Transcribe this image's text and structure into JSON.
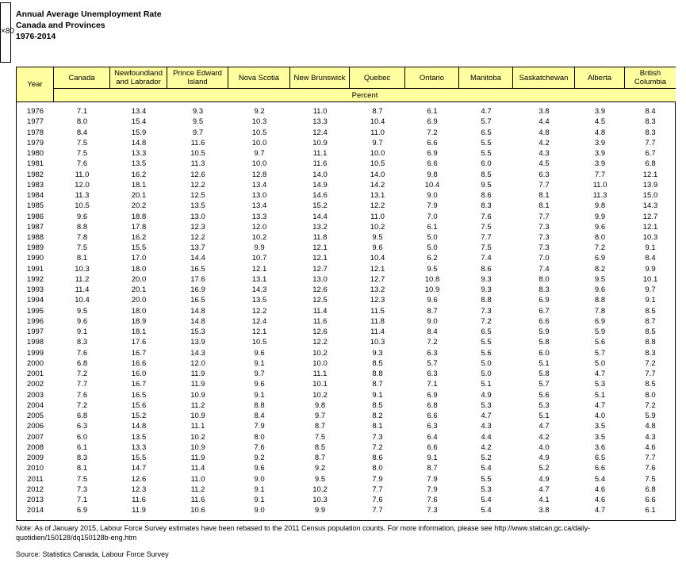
{
  "header": {
    "image_alt": "×80",
    "title": "Annual Average Unemployment Rate",
    "subtitle": "Canada and Provinces",
    "period": "1976-2014"
  },
  "table": {
    "columns": [
      "Year",
      "Canada",
      "Newfoundland and Labrador",
      "Prince Edward Island",
      "Nova Scotia",
      "New Brunswick",
      "Quebec",
      "Ontario",
      "Manitoba",
      "Saskatchewan",
      "Alberta",
      "British Columbia"
    ],
    "unit": "Percent",
    "rows": [
      [
        "1976",
        "7.1",
        "13.4",
        "9.3",
        "9.2",
        "11.0",
        "8.7",
        "6.1",
        "4.7",
        "3.8",
        "3.9",
        "8.4"
      ],
      [
        "1977",
        "8.0",
        "15.4",
        "9.5",
        "10.3",
        "13.3",
        "10.4",
        "6.9",
        "5.7",
        "4.4",
        "4.5",
        "8.3"
      ],
      [
        "1978",
        "8.4",
        "15.9",
        "9.7",
        "10.5",
        "12.4",
        "11.0",
        "7.2",
        "6.5",
        "4.8",
        "4.8",
        "8.3"
      ],
      [
        "1979",
        "7.5",
        "14.8",
        "11.6",
        "10.0",
        "10.9",
        "9.7",
        "6.6",
        "5.5",
        "4.2",
        "3.9",
        "7.7"
      ],
      [
        "1980",
        "7.5",
        "13.3",
        "10.5",
        "9.7",
        "11.1",
        "10.0",
        "6.9",
        "5.5",
        "4.3",
        "3.9",
        "6.7"
      ],
      [
        "1981",
        "7.6",
        "13.5",
        "11.3",
        "10.0",
        "11.6",
        "10.5",
        "6.6",
        "6.0",
        "4.5",
        "3.9",
        "6.8"
      ],
      [
        "1982",
        "11.0",
        "16.2",
        "12.6",
        "12.8",
        "14.0",
        "14.0",
        "9.8",
        "8.5",
        "6.3",
        "7.7",
        "12.1"
      ],
      [
        "1983",
        "12.0",
        "18.1",
        "12.2",
        "13.4",
        "14.9",
        "14.2",
        "10.4",
        "9.5",
        "7.7",
        "11.0",
        "13.9"
      ],
      [
        "1984",
        "11.3",
        "20.1",
        "12.5",
        "13.0",
        "14.6",
        "13.1",
        "9.0",
        "8.6",
        "8.1",
        "11.3",
        "15.0"
      ],
      [
        "1985",
        "10.5",
        "20.2",
        "13.5",
        "13.4",
        "15.2",
        "12.2",
        "7.9",
        "8.3",
        "8.1",
        "9.8",
        "14.3"
      ],
      [
        "1986",
        "9.6",
        "18.8",
        "13.0",
        "13.3",
        "14.4",
        "11.0",
        "7.0",
        "7.6",
        "7.7",
        "9.9",
        "12.7"
      ],
      [
        "1987",
        "8.8",
        "17.8",
        "12.3",
        "12.0",
        "13.2",
        "10.2",
        "6.1",
        "7.5",
        "7.3",
        "9.6",
        "12.1"
      ],
      [
        "1988",
        "7.8",
        "16.2",
        "12.2",
        "10.2",
        "11.8",
        "9.5",
        "5.0",
        "7.7",
        "7.3",
        "8.0",
        "10.3"
      ],
      [
        "1989",
        "7.5",
        "15.5",
        "13.7",
        "9.9",
        "12.1",
        "9.6",
        "5.0",
        "7.5",
        "7.3",
        "7.2",
        "9.1"
      ],
      [
        "1990",
        "8.1",
        "17.0",
        "14.4",
        "10.7",
        "12.1",
        "10.4",
        "6.2",
        "7.4",
        "7.0",
        "6.9",
        "8.4"
      ],
      [
        "1991",
        "10.3",
        "18.0",
        "16.5",
        "12.1",
        "12.7",
        "12.1",
        "9.5",
        "8.6",
        "7.4",
        "8.2",
        "9.9"
      ],
      [
        "1992",
        "11.2",
        "20.0",
        "17.6",
        "13.1",
        "13.0",
        "12.7",
        "10.8",
        "9.3",
        "8.0",
        "9.5",
        "10.1"
      ],
      [
        "1993",
        "11.4",
        "20.1",
        "16.9",
        "14.3",
        "12.6",
        "13.2",
        "10.9",
        "9.3",
        "8.3",
        "9.6",
        "9.7"
      ],
      [
        "1994",
        "10.4",
        "20.0",
        "16.5",
        "13.5",
        "12.5",
        "12.3",
        "9.6",
        "8.8",
        "6.9",
        "8.8",
        "9.1"
      ],
      [
        "1995",
        "9.5",
        "18.0",
        "14.8",
        "12.2",
        "11.4",
        "11.5",
        "8.7",
        "7.3",
        "6.7",
        "7.8",
        "8.5"
      ],
      [
        "1996",
        "9.6",
        "18.9",
        "14.8",
        "12.4",
        "11.6",
        "11.8",
        "9.0",
        "7.2",
        "6.6",
        "6.9",
        "8.7"
      ],
      [
        "1997",
        "9.1",
        "18.1",
        "15.3",
        "12.1",
        "12.6",
        "11.4",
        "8.4",
        "6.5",
        "5.9",
        "5.9",
        "8.5"
      ],
      [
        "1998",
        "8.3",
        "17.6",
        "13.9",
        "10.5",
        "12.2",
        "10.3",
        "7.2",
        "5.5",
        "5.8",
        "5.6",
        "8.8"
      ],
      [
        "1999",
        "7.6",
        "16.7",
        "14.3",
        "9.6",
        "10.2",
        "9.3",
        "6.3",
        "5.6",
        "6.0",
        "5.7",
        "8.3"
      ],
      [
        "2000",
        "6.8",
        "16.6",
        "12.0",
        "9.1",
        "10.0",
        "8.5",
        "5.7",
        "5.0",
        "5.1",
        "5.0",
        "7.2"
      ],
      [
        "2001",
        "7.2",
        "16.0",
        "11.9",
        "9.7",
        "11.1",
        "8.8",
        "6.3",
        "5.0",
        "5.8",
        "4.7",
        "7.7"
      ],
      [
        "2002",
        "7.7",
        "16.7",
        "11.9",
        "9.6",
        "10.1",
        "8.7",
        "7.1",
        "5.1",
        "5.7",
        "5.3",
        "8.5"
      ],
      [
        "2003",
        "7.6",
        "16.5",
        "10.9",
        "9.1",
        "10.2",
        "9.1",
        "6.9",
        "4.9",
        "5.6",
        "5.1",
        "8.0"
      ],
      [
        "2004",
        "7.2",
        "15.6",
        "11.2",
        "8.8",
        "9.8",
        "8.5",
        "6.8",
        "5.3",
        "5.3",
        "4.7",
        "7.2"
      ],
      [
        "2005",
        "6.8",
        "15.2",
        "10.9",
        "8.4",
        "9.7",
        "8.2",
        "6.6",
        "4.7",
        "5.1",
        "4.0",
        "5.9"
      ],
      [
        "2006",
        "6.3",
        "14.8",
        "11.1",
        "7.9",
        "8.7",
        "8.1",
        "6.3",
        "4.3",
        "4.7",
        "3.5",
        "4.8"
      ],
      [
        "2007",
        "6.0",
        "13.5",
        "10.2",
        "8.0",
        "7.5",
        "7.3",
        "6.4",
        "4.4",
        "4.2",
        "3.5",
        "4.3"
      ],
      [
        "2008",
        "6.1",
        "13.3",
        "10.9",
        "7.6",
        "8.5",
        "7.2",
        "6.6",
        "4.2",
        "4.0",
        "3.6",
        "4.6"
      ],
      [
        "2009",
        "8.3",
        "15.5",
        "11.9",
        "9.2",
        "8.7",
        "8.6",
        "9.1",
        "5.2",
        "4.9",
        "6.5",
        "7.7"
      ],
      [
        "2010",
        "8.1",
        "14.7",
        "11.4",
        "9.6",
        "9.2",
        "8.0",
        "8.7",
        "5.4",
        "5.2",
        "6.6",
        "7.6"
      ],
      [
        "2011",
        "7.5",
        "12.6",
        "11.0",
        "9.0",
        "9.5",
        "7.9",
        "7.9",
        "5.5",
        "4.9",
        "5.4",
        "7.5"
      ],
      [
        "2012",
        "7.3",
        "12.3",
        "11.2",
        "9.1",
        "10.2",
        "7.7",
        "7.9",
        "5.3",
        "4.7",
        "4.6",
        "6.8"
      ],
      [
        "2013",
        "7.1",
        "11.6",
        "11.6",
        "9.1",
        "10.3",
        "7.6",
        "7.6",
        "5.4",
        "4.1",
        "4.6",
        "6.6"
      ],
      [
        "2014",
        "6.9",
        "11.9",
        "10.6",
        "9.0",
        "9.9",
        "7.7",
        "7.3",
        "5.4",
        "3.8",
        "4.7",
        "6.1"
      ]
    ]
  },
  "footer": {
    "note": "Note: As of January 2015, Labour Force Survey estimates have been rebased to the 2011 Census population counts.  For more information, please see http://www.statcan.gc.ca/daily-quotidien/150128/dq150128b-eng.htm",
    "source": "Source: Statistics Canada, Labour Force Survey"
  }
}
